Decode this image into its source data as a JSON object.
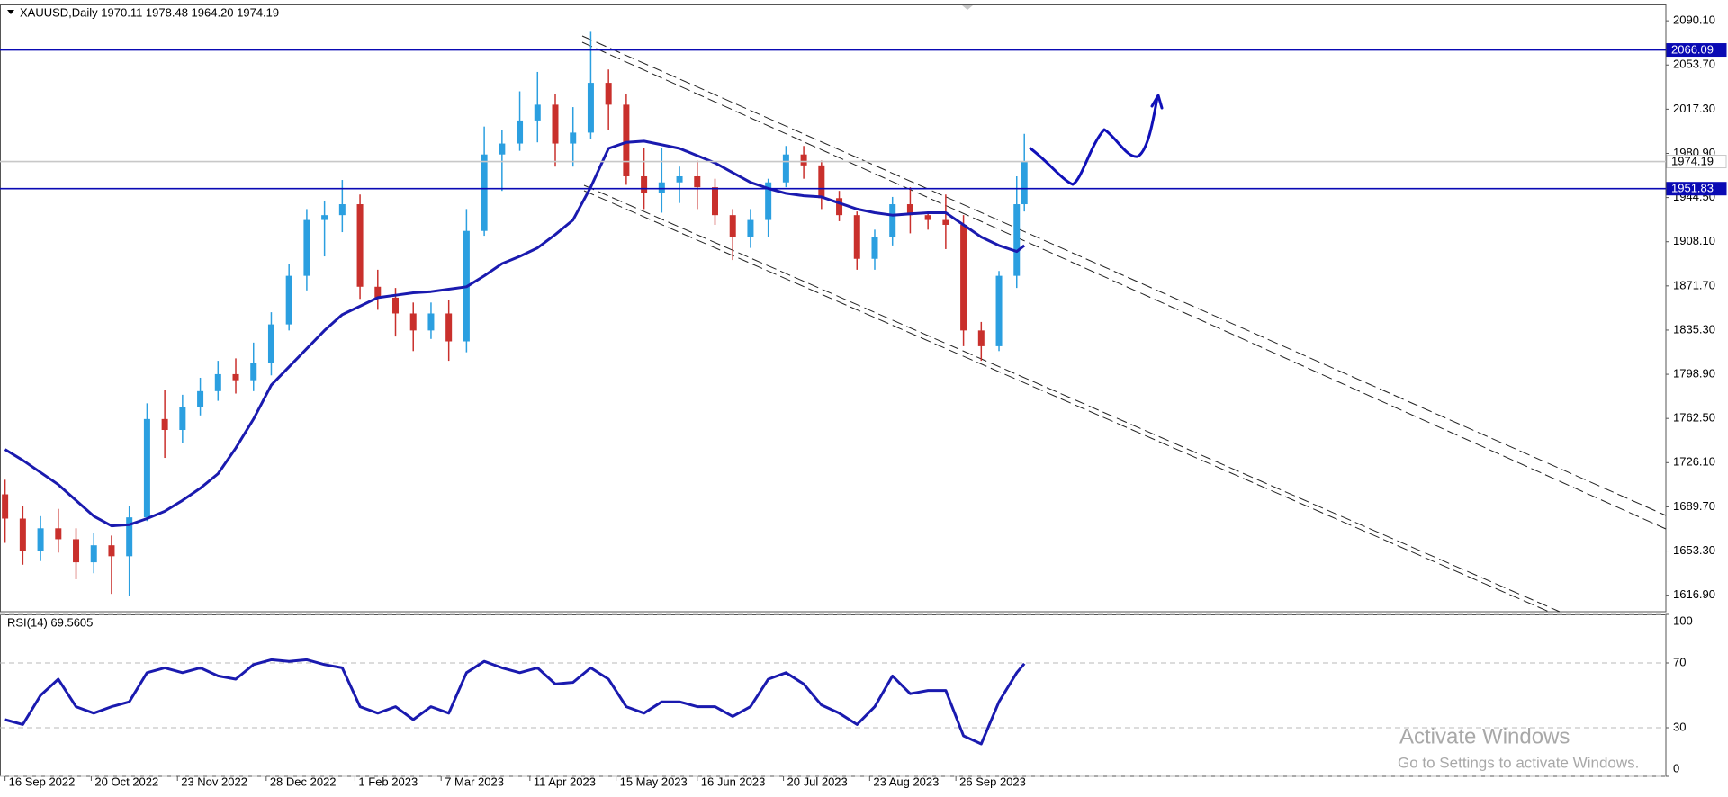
{
  "chart_data": [
    {
      "type": "candlestick",
      "title": "XAUUSD,Daily  1970.11 1978.48 1964.20 1974.19",
      "x": [
        "2022-09-16",
        "2022-09-23",
        "2022-09-30",
        "2022-10-07",
        "2022-10-14",
        "2022-10-21",
        "2022-10-28",
        "2022-11-04",
        "2022-11-11",
        "2022-11-18",
        "2022-11-25",
        "2022-12-02",
        "2022-12-09",
        "2022-12-16",
        "2022-12-23",
        "2022-12-30",
        "2023-01-06",
        "2023-01-13",
        "2023-01-20",
        "2023-01-27",
        "2023-02-03",
        "2023-02-10",
        "2023-02-17",
        "2023-02-24",
        "2023-03-03",
        "2023-03-10",
        "2023-03-17",
        "2023-03-24",
        "2023-03-31",
        "2023-04-07",
        "2023-04-14",
        "2023-04-21",
        "2023-04-28",
        "2023-05-05",
        "2023-05-12",
        "2023-05-19",
        "2023-05-26",
        "2023-06-02",
        "2023-06-09",
        "2023-06-16",
        "2023-06-23",
        "2023-06-30",
        "2023-07-07",
        "2023-07-14",
        "2023-07-21",
        "2023-07-28",
        "2023-08-04",
        "2023-08-11",
        "2023-08-18",
        "2023-08-25",
        "2023-09-01",
        "2023-09-08",
        "2023-09-15",
        "2023-09-22",
        "2023-09-29",
        "2023-10-06",
        "2023-10-13",
        "2023-10-20",
        "2023-10-23"
      ],
      "open": [
        1700,
        1680,
        1653,
        1672,
        1663,
        1644,
        1658,
        1649,
        1681,
        1762,
        1753,
        1772,
        1785,
        1799,
        1794,
        1808,
        1840,
        1880,
        1926,
        1930,
        1939,
        1871,
        1862,
        1849,
        1835,
        1849,
        1826,
        1917,
        1980,
        1989,
        2008,
        2021,
        1989,
        1998,
        2039,
        2021,
        1962,
        1948,
        1957,
        1962,
        1953,
        1930,
        1912,
        1926,
        1957,
        1980,
        1971,
        1944,
        1930,
        1894,
        1912,
        1939,
        1930,
        1926,
        1922,
        1835,
        1822,
        1880,
        1939
      ],
      "high": [
        1712,
        1690,
        1682,
        1688,
        1672,
        1668,
        1666,
        1690,
        1775,
        1786,
        1782,
        1796,
        1810,
        1812,
        1825,
        1850,
        1890,
        1935,
        1942,
        1959,
        1947,
        1885,
        1870,
        1858,
        1858,
        1860,
        1935,
        2003,
        2000,
        2032,
        2048,
        2030,
        2019,
        2081,
        2050,
        2030,
        1985,
        1985,
        1970,
        1975,
        1960,
        1935,
        1935,
        1960,
        1987,
        1987,
        1975,
        1950,
        1933,
        1918,
        1945,
        1953,
        1933,
        1947,
        1930,
        1842,
        1884,
        1962,
        1997
      ],
      "low": [
        1660,
        1642,
        1645,
        1652,
        1630,
        1635,
        1618,
        1616,
        1678,
        1730,
        1742,
        1765,
        1777,
        1783,
        1785,
        1798,
        1835,
        1868,
        1896,
        1916,
        1861,
        1852,
        1830,
        1818,
        1828,
        1810,
        1817,
        1913,
        1950,
        1983,
        1990,
        1970,
        1970,
        1993,
        2000,
        1955,
        1935,
        1932,
        1940,
        1935,
        1922,
        1893,
        1903,
        1912,
        1953,
        1960,
        1935,
        1925,
        1885,
        1885,
        1905,
        1915,
        1918,
        1902,
        1822,
        1810,
        1818,
        1870,
        1933
      ],
      "close": [
        1680,
        1653,
        1672,
        1663,
        1644,
        1658,
        1649,
        1681,
        1762,
        1753,
        1772,
        1785,
        1799,
        1794,
        1808,
        1840,
        1880,
        1926,
        1930,
        1939,
        1871,
        1862,
        1849,
        1835,
        1849,
        1826,
        1917,
        1980,
        1989,
        2008,
        2021,
        1989,
        1998,
        2039,
        2021,
        1962,
        1948,
        1957,
        1962,
        1953,
        1930,
        1912,
        1926,
        1957,
        1980,
        1971,
        1944,
        1930,
        1894,
        1912,
        1939,
        1930,
        1926,
        1922,
        1835,
        1822,
        1880,
        1939,
        1974.19
      ],
      "up_color": "#2b9fe0",
      "down_color": "#c9302c",
      "ma": {
        "color": "#1a1aaf",
        "values": [
          1737,
          1728,
          1718,
          1708,
          1695,
          1682,
          1674,
          1675,
          1680,
          1686,
          1695,
          1705,
          1717,
          1738,
          1762,
          1790,
          1805,
          1820,
          1835,
          1848,
          1855,
          1862,
          1864,
          1866,
          1867,
          1869,
          1871,
          1880,
          1890,
          1896,
          1903,
          1914,
          1926,
          1953,
          1985,
          1990,
          1991,
          1988,
          1985,
          1979,
          1973,
          1965,
          1957,
          1952,
          1948,
          1946,
          1945,
          1940,
          1935,
          1932,
          1930,
          1931,
          1932,
          1932,
          1922,
          1912,
          1905,
          1900,
          1905
        ]
      },
      "levels": [
        {
          "value": 2066.09,
          "color": "#0a0ab4",
          "fill": "#0a0ab4",
          "text_color": "#ffffff"
        },
        {
          "value": 1974.19,
          "color": "#c8c8c8",
          "fill": "#ffffff",
          "text_color": "#000000"
        },
        {
          "value": 1951.83,
          "color": "#0a0ab4",
          "fill": "#0a0ab4",
          "text_color": "#ffffff"
        }
      ],
      "xlim": [
        "2022-09-14",
        "2024-07-02"
      ],
      "ylim": [
        1603.3,
        2102.8
      ],
      "yticks": [
        {
          "value": 2090.1,
          "label": "2090.10"
        },
        {
          "value": 2053.7,
          "label": "2053.70"
        },
        {
          "value": 2017.3,
          "label": "2017.30"
        },
        {
          "value": 1980.9,
          "label": "1980.90"
        },
        {
          "value": 1944.5,
          "label": "1944.50"
        },
        {
          "value": 1908.1,
          "label": "1908.10"
        },
        {
          "value": 1871.7,
          "label": "1871.70"
        },
        {
          "value": 1835.3,
          "label": "1835.30"
        },
        {
          "value": 1798.9,
          "label": "1798.90"
        },
        {
          "value": 1762.5,
          "label": "1762.50"
        },
        {
          "value": 1726.1,
          "label": "1726.10"
        },
        {
          "value": 1689.7,
          "label": "1689.70"
        },
        {
          "value": 1653.3,
          "label": "1653.30"
        },
        {
          "value": 1616.9,
          "label": "1616.90"
        }
      ],
      "grid": false
    },
    {
      "type": "line",
      "title": "RSI(14) 69.5605",
      "x": [
        "2022-09-16",
        "2022-09-23",
        "2022-09-30",
        "2022-10-07",
        "2022-10-14",
        "2022-10-21",
        "2022-10-28",
        "2022-11-04",
        "2022-11-11",
        "2022-11-18",
        "2022-11-25",
        "2022-12-02",
        "2022-12-09",
        "2022-12-16",
        "2022-12-23",
        "2022-12-30",
        "2023-01-06",
        "2023-01-13",
        "2023-01-20",
        "2023-01-27",
        "2023-02-03",
        "2023-02-10",
        "2023-02-17",
        "2023-02-24",
        "2023-03-03",
        "2023-03-10",
        "2023-03-17",
        "2023-03-24",
        "2023-03-31",
        "2023-04-07",
        "2023-04-14",
        "2023-04-21",
        "2023-04-28",
        "2023-05-05",
        "2023-05-12",
        "2023-05-19",
        "2023-05-26",
        "2023-06-02",
        "2023-06-09",
        "2023-06-16",
        "2023-06-23",
        "2023-06-30",
        "2023-07-07",
        "2023-07-14",
        "2023-07-21",
        "2023-07-28",
        "2023-08-04",
        "2023-08-11",
        "2023-08-18",
        "2023-08-25",
        "2023-09-01",
        "2023-09-08",
        "2023-09-15",
        "2023-09-22",
        "2023-09-29",
        "2023-10-06",
        "2023-10-13",
        "2023-10-20",
        "2023-10-23"
      ],
      "series": [
        {
          "color": "#1a1aaf",
          "values": [
            35,
            32,
            50,
            60,
            43,
            39,
            43,
            46,
            64,
            67,
            64,
            67,
            62,
            60,
            69,
            72,
            71,
            72,
            69,
            67,
            43,
            39,
            43,
            35,
            43,
            39,
            64,
            71,
            67,
            64,
            67,
            57,
            58,
            67,
            60,
            43,
            39,
            46,
            46,
            43,
            43,
            37,
            43,
            60,
            64,
            57,
            44,
            39,
            32,
            43,
            62,
            51,
            53,
            53,
            25,
            20,
            46,
            64,
            69.5605
          ]
        }
      ],
      "xlim": [
        "2022-09-14",
        "2024-07-02"
      ],
      "xticks": [
        {
          "value": "2022-09-16",
          "label": "16 Sep 2022"
        },
        {
          "value": "2022-10-20",
          "label": "20 Oct 2022"
        },
        {
          "value": "2022-11-23",
          "label": "23 Nov 2022"
        },
        {
          "value": "2022-12-28",
          "label": "28 Dec 2022"
        },
        {
          "value": "2023-02-01",
          "label": "1 Feb 2023"
        },
        {
          "value": "2023-03-07",
          "label": "7 Mar 2023"
        },
        {
          "value": "2023-04-11",
          "label": "11 Apr 2023"
        },
        {
          "value": "2023-05-15",
          "label": "15 May 2023"
        },
        {
          "value": "2023-06-16",
          "label": "16 Jun 2023"
        },
        {
          "value": "2023-07-20",
          "label": "20 Jul 2023"
        },
        {
          "value": "2023-08-23",
          "label": "23 Aug 2023"
        },
        {
          "value": "2023-09-26",
          "label": "26 Sep 2023"
        }
      ],
      "ylim": [
        0,
        100
      ],
      "yticks": [
        0,
        30,
        70,
        100
      ],
      "grid": true
    }
  ],
  "watermark": {
    "title": "Activate Windows",
    "subtitle": "Go to Settings to activate Windows."
  }
}
